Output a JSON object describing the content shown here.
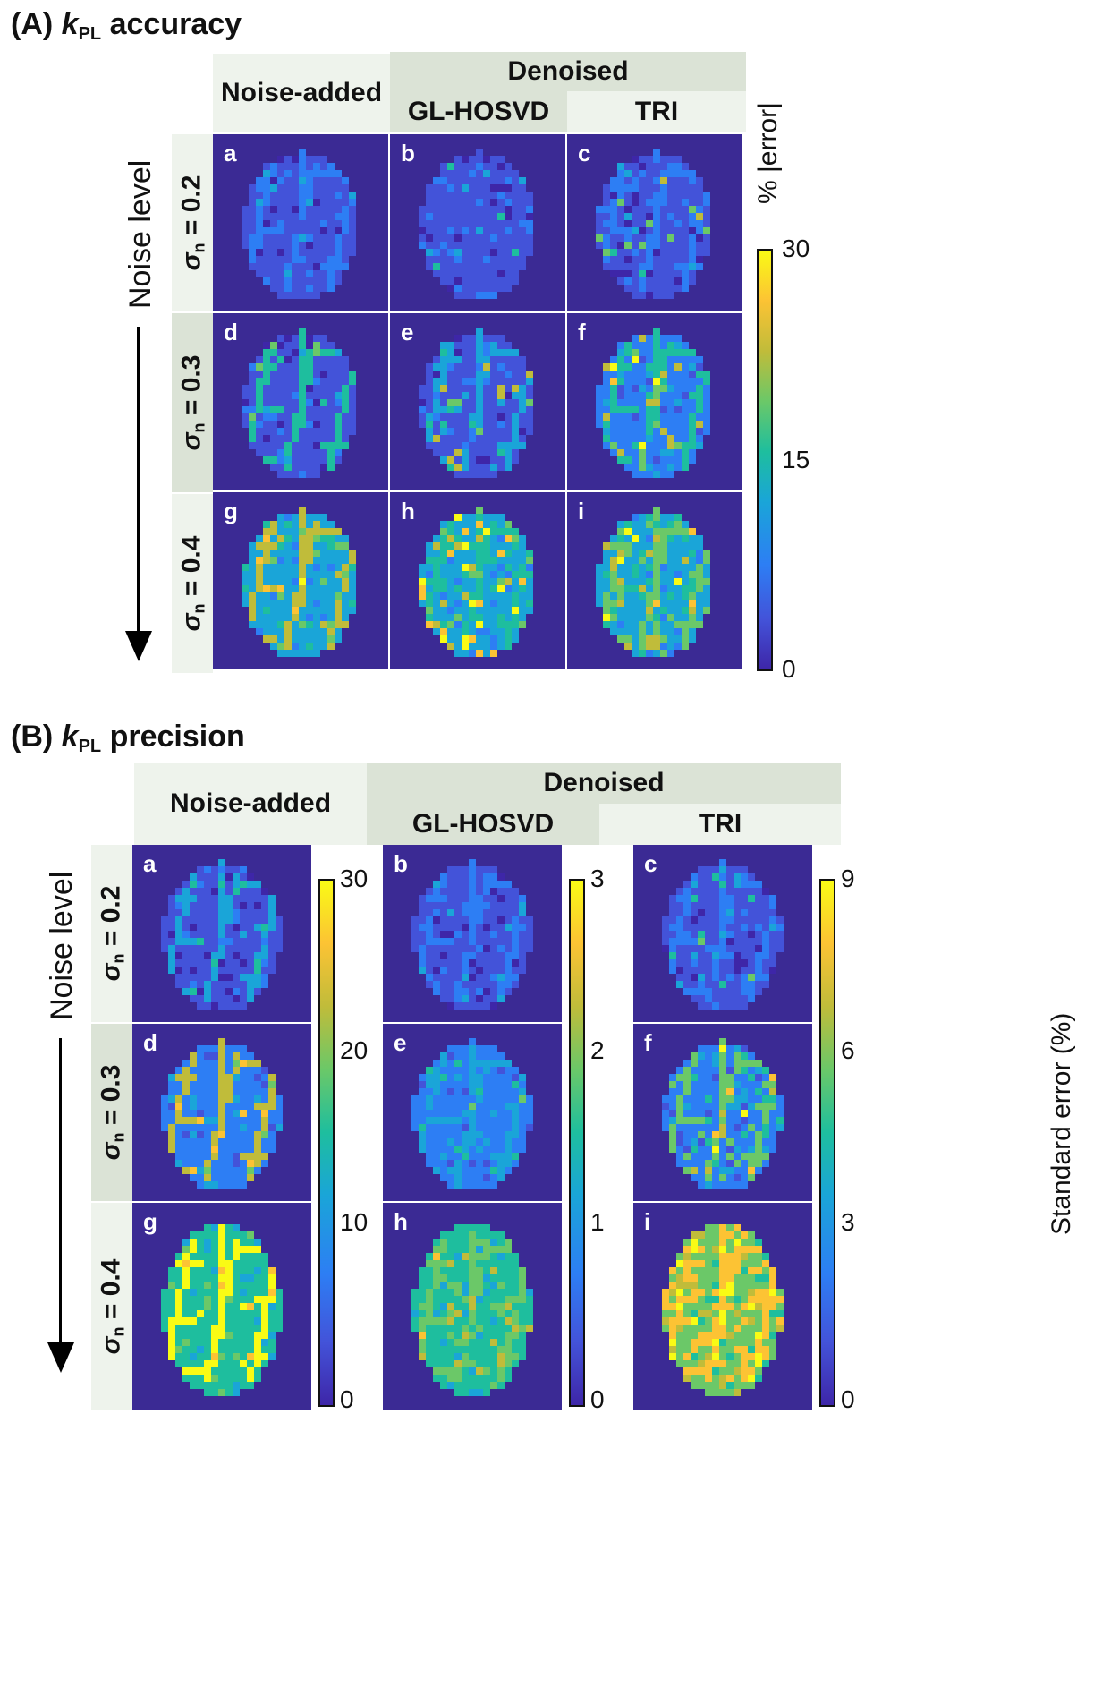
{
  "sectionA": {
    "label": "(A)",
    "kvar": "k",
    "ksub": "PL",
    "title_rest": "accuracy",
    "col_noise": "Noise-added",
    "col_denoised": "Denoised",
    "col_glhosvd": "GL-HOSVD",
    "col_tri": "TRI",
    "noise_level": "Noise level",
    "rows": [
      {
        "sigma": "σ",
        "sub": "n",
        "val": "= 0.2"
      },
      {
        "sigma": "σ",
        "sub": "n",
        "val": "= 0.3"
      },
      {
        "sigma": "σ",
        "sub": "n",
        "val": "= 0.4"
      }
    ],
    "letters": [
      "a",
      "b",
      "c",
      "d",
      "e",
      "f",
      "g",
      "h",
      "i"
    ],
    "colorbar_label": "% |error|",
    "colorbar_ticks": [
      "30",
      "15",
      "0"
    ]
  },
  "sectionB": {
    "label": "(B)",
    "kvar": "k",
    "ksub": "PL",
    "title_rest": "precision",
    "col_noise": "Noise-added",
    "col_denoised": "Denoised",
    "col_glhosvd": "GL-HOSVD",
    "col_tri": "TRI",
    "noise_level": "Noise level",
    "rows": [
      {
        "sigma": "σ",
        "sub": "n",
        "val": "= 0.2"
      },
      {
        "sigma": "σ",
        "sub": "n",
        "val": "= 0.3"
      },
      {
        "sigma": "σ",
        "sub": "n",
        "val": "= 0.4"
      }
    ],
    "letters": [
      "a",
      "b",
      "c",
      "d",
      "e",
      "f",
      "g",
      "h",
      "i"
    ],
    "cbar1_ticks": [
      "30",
      "20",
      "10",
      "0"
    ],
    "cbar2_ticks": [
      "3",
      "2",
      "1",
      "0"
    ],
    "cbar3_ticks": [
      "9",
      "6",
      "3",
      "0"
    ],
    "cbar3_label": "Standard error (%)"
  },
  "colors": {
    "background_map": "#3b2a94",
    "colormap": [
      "#3e26a8",
      "#4353d9",
      "#2d7ef4",
      "#1aa5d8",
      "#1ebe9e",
      "#6bc868",
      "#c0bc3a",
      "#fcc334",
      "#f9fb15"
    ]
  }
}
